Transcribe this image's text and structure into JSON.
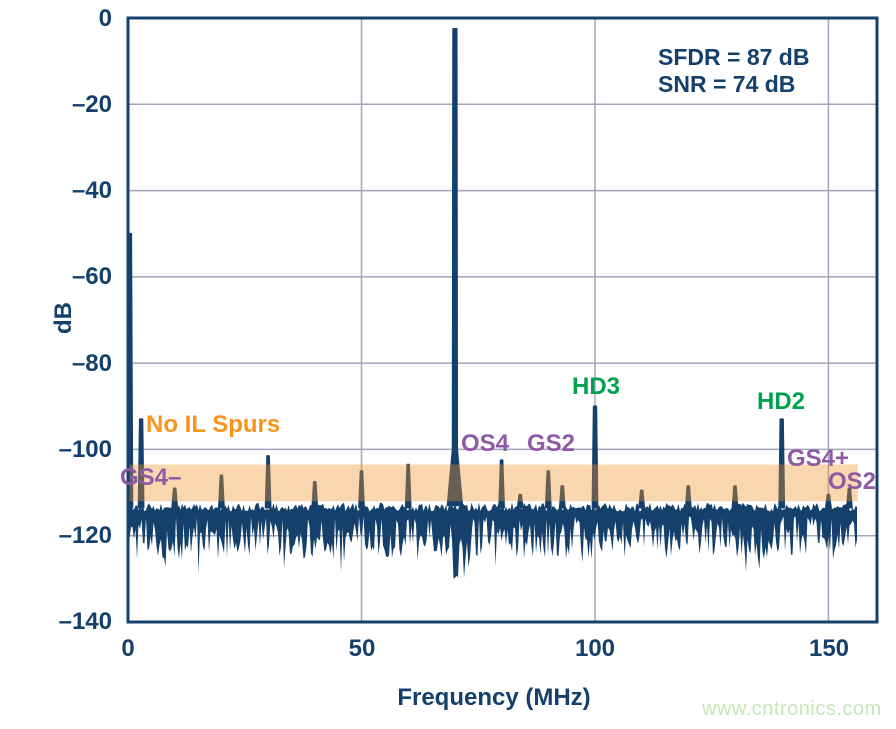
{
  "chart_data": {
    "type": "line",
    "title": "",
    "xlabel": "Frequency (MHz)",
    "ylabel": "dB",
    "xlim": [
      0,
      160.4
    ],
    "ylim": [
      -140,
      0
    ],
    "x_ticks": [
      0,
      50,
      100,
      150
    ],
    "y_ticks": [
      0,
      -20,
      -40,
      -60,
      -80,
      -100,
      -120,
      -140
    ],
    "x_tick_labels": [
      "0",
      "50",
      "100",
      "150"
    ],
    "y_tick_labels": [
      "0",
      "–20",
      "–40",
      "–60",
      "–80",
      "–100",
      "–120",
      "–140"
    ],
    "grid": true,
    "legend_position": "none",
    "stats": {
      "sfdr_line": "SFDR = 87 dB",
      "snr_line": "SNR = 74 dB"
    },
    "fundamental": {
      "f": 70,
      "db": -2.5
    },
    "spurs": [
      {
        "f": 0.4,
        "db": -50
      },
      {
        "f": 2.8,
        "db": -93
      },
      {
        "f": 10,
        "db": -109
      },
      {
        "f": 20,
        "db": -106
      },
      {
        "f": 30,
        "db": -101.5
      },
      {
        "f": 40,
        "db": -107.5
      },
      {
        "f": 50,
        "db": -105
      },
      {
        "f": 60,
        "db": -103.5
      },
      {
        "f": 80,
        "db": -102.5
      },
      {
        "f": 84,
        "db": -110.5
      },
      {
        "f": 90,
        "db": -105
      },
      {
        "f": 93,
        "db": -108.5
      },
      {
        "f": 100,
        "db": -90
      },
      {
        "f": 110,
        "db": -109.5
      },
      {
        "f": 120,
        "db": -108.5
      },
      {
        "f": 130,
        "db": -108.5
      },
      {
        "f": 140,
        "db": -93
      },
      {
        "f": 150,
        "db": -110.5
      },
      {
        "f": 154.5,
        "db": -109
      }
    ],
    "noise": {
      "start_mhz": 0,
      "end_mhz": 156.3,
      "top_db": -112.3,
      "top_jitter_db": 2.1,
      "bottom_db": -115.5,
      "bottom_jitter_db": 10,
      "deep_spike_db": -130.5
    },
    "highlight_band": {
      "db_top": -103.5,
      "db_bottom": -112,
      "mhz_end": 156.3,
      "color": "rgba(240,146,43,0.38)"
    },
    "annotations": {
      "no_il_spurs": {
        "text": "No IL Spurs",
        "color": "#f7941e"
      },
      "gs4_minus": {
        "text": "GS4–",
        "color": "#8e5aa5"
      },
      "os4": {
        "text": "OS4",
        "color": "#8e5aa5"
      },
      "gs2": {
        "text": "GS2",
        "color": "#8e5aa5"
      },
      "hd3": {
        "text": "HD3",
        "color": "#00a14f"
      },
      "hd2": {
        "text": "HD2",
        "color": "#00a14f"
      },
      "gs4_plus": {
        "text": "GS4+",
        "color": "#8e5aa5"
      },
      "os2": {
        "text": "OS2",
        "color": "#8e5aa5"
      }
    },
    "colors": {
      "trace": "#14406b",
      "grid": "#a2a6bb",
      "text": "#14406b",
      "watermark": "#c6e6b9"
    },
    "watermark": "www.cntronics.com"
  }
}
